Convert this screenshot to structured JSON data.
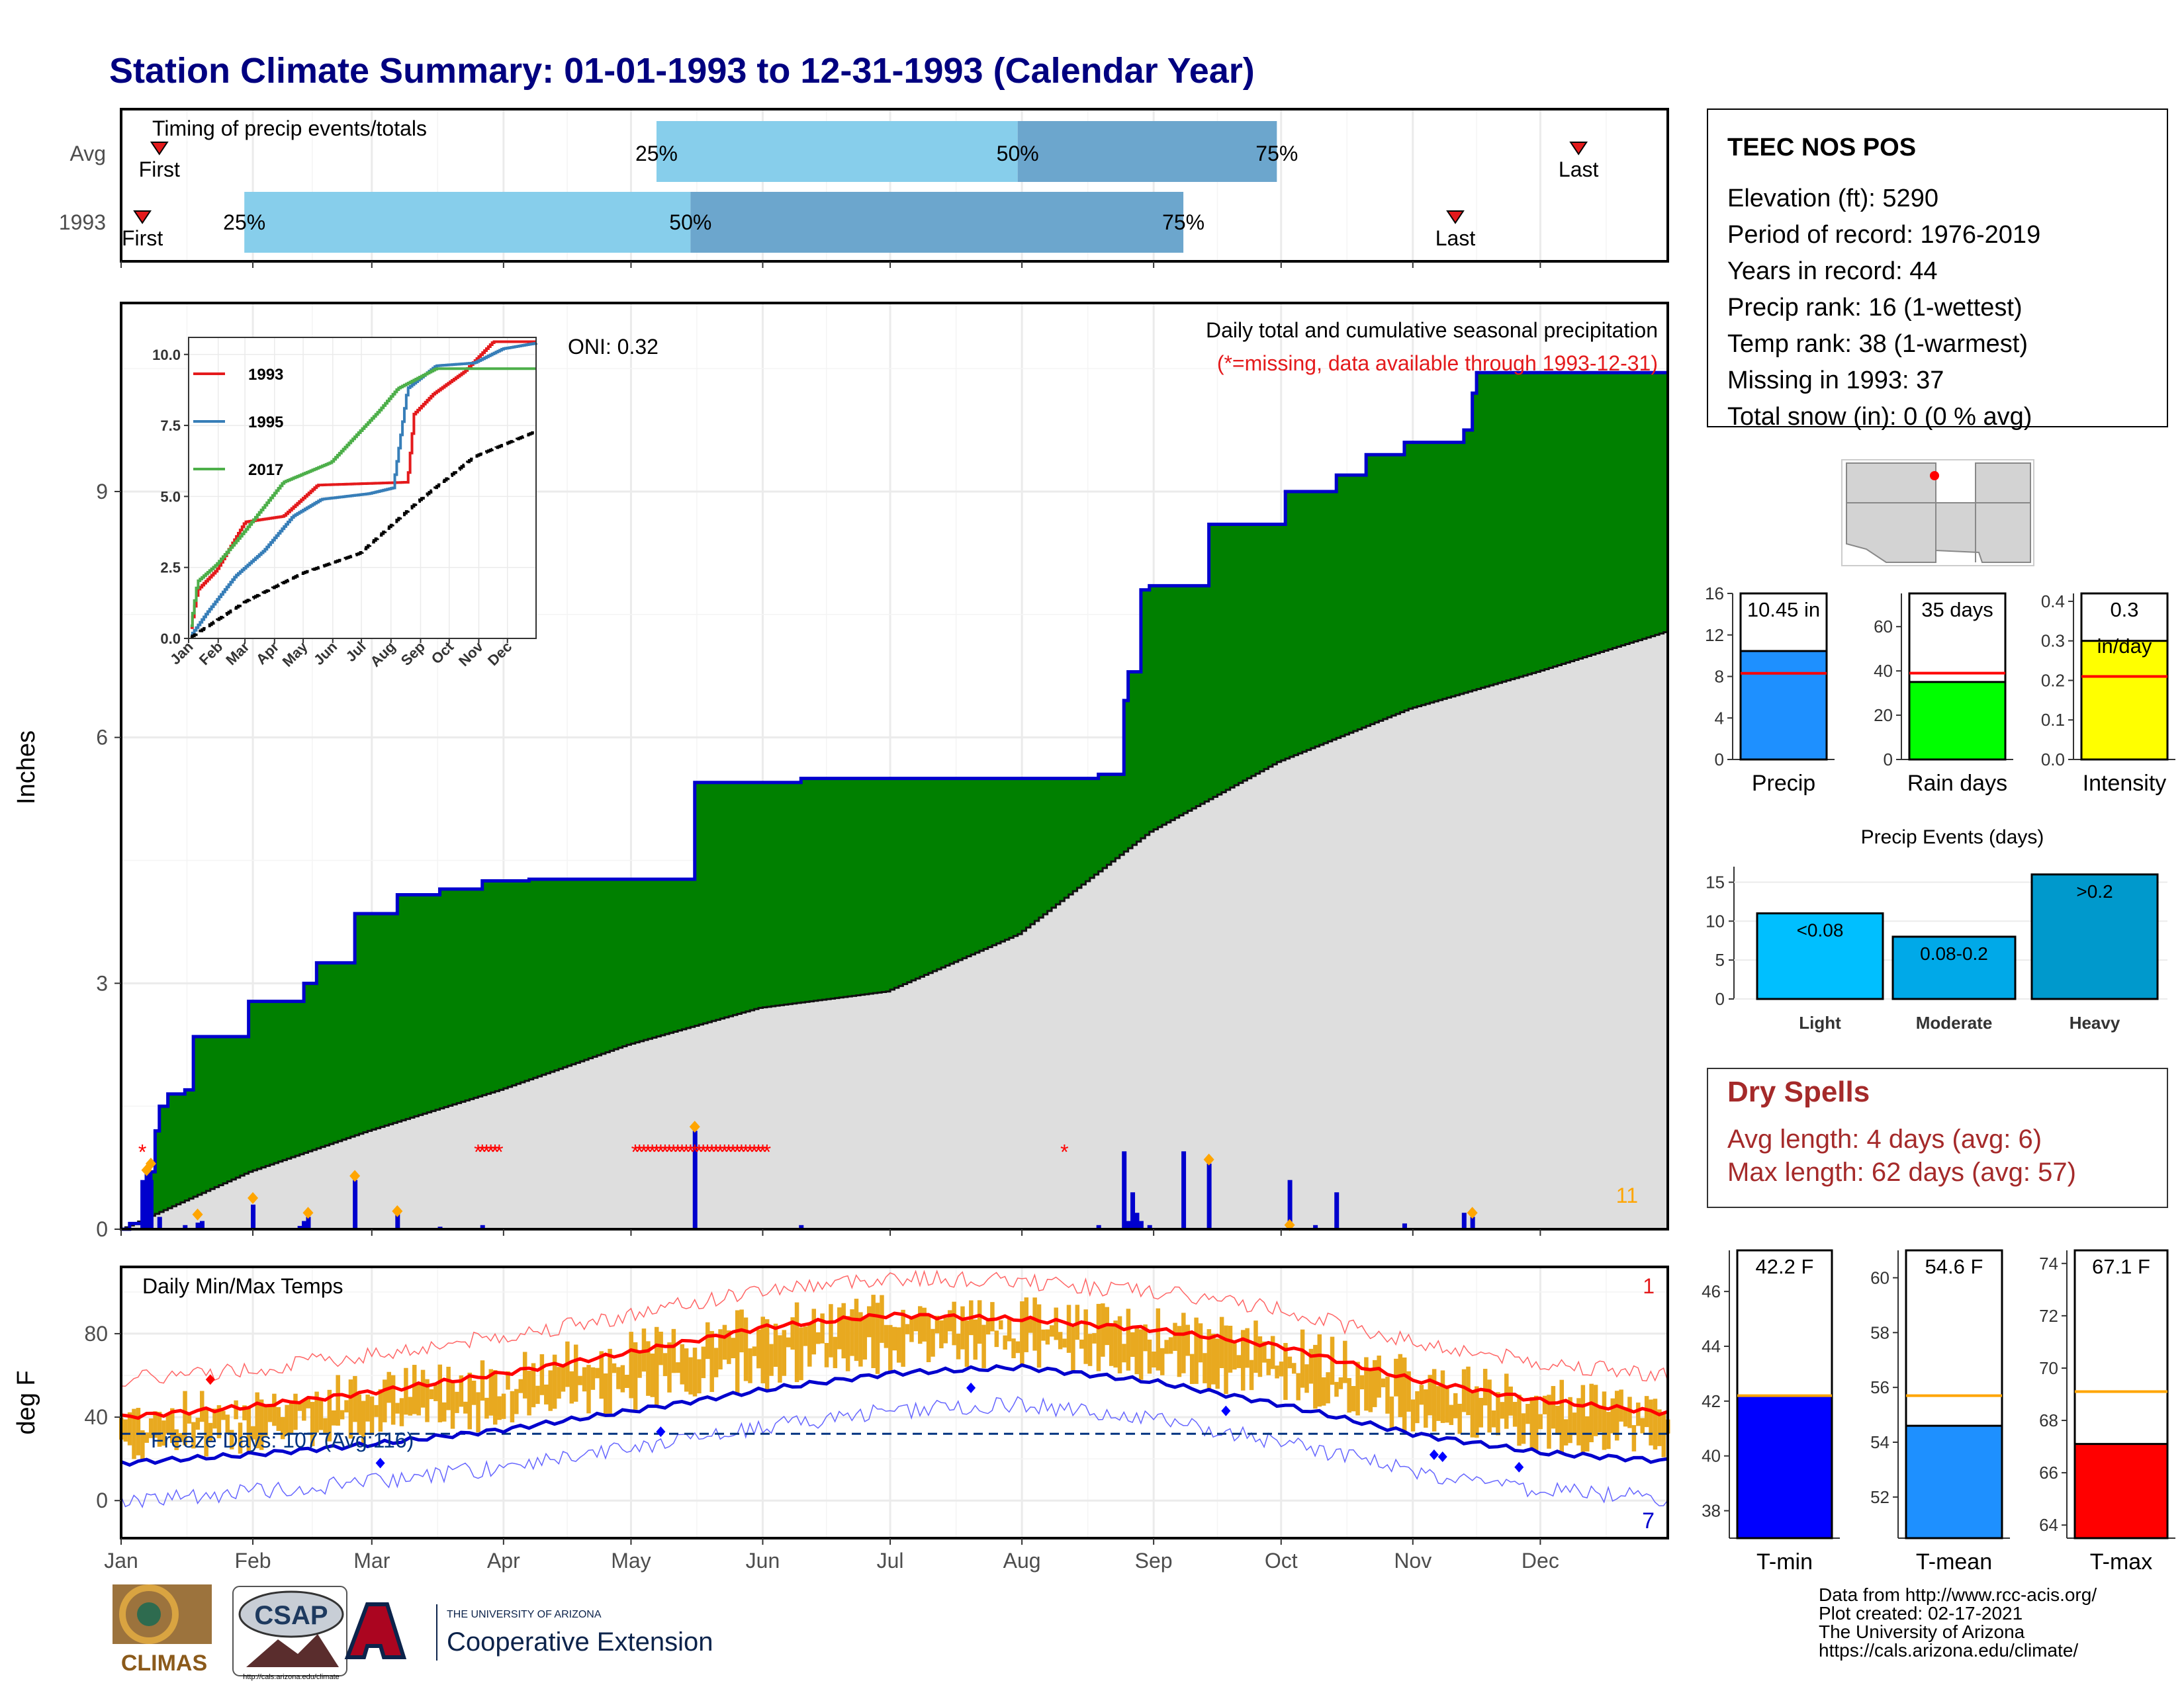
{
  "title": "Station Climate Summary: 01-01-1993 to 12-31-1993 (Calendar Year)",
  "colors": {
    "title": "#000080",
    "green": "#008000",
    "blue_line": "#0000CD",
    "gray_fill": "#DEDEDE",
    "light_blue": "#87CEEB",
    "mid_blue": "#6CA6CD",
    "dodger": "#1E90FF",
    "red": "#E41A1C",
    "orange": "#FFA500",
    "gold": "#E8A920",
    "lime": "#00FF00",
    "yellow": "#FFFF00",
    "deepsky": "#00BFFF",
    "dry_red": "#A52A2A"
  },
  "months": [
    "Jan",
    "Feb",
    "Mar",
    "Apr",
    "May",
    "Jun",
    "Jul",
    "Aug",
    "Sep",
    "Oct",
    "Nov",
    "Dec"
  ],
  "timing": {
    "title": "Timing of precip events/totals",
    "rows": [
      {
        "label": "Avg",
        "p25_doy": 127,
        "p50_doy": 212,
        "p75_doy": 273,
        "first_doy": 10,
        "last_doy": 344,
        "text_p25": "25%",
        "text_p50": "50%",
        "text_p75": "75%",
        "text_first": "First",
        "text_last": "Last"
      },
      {
        "label": "1993",
        "p25_doy": 30,
        "p50_doy": 135,
        "p75_doy": 251,
        "first_doy": 6,
        "last_doy": 315,
        "text_p25": "25%",
        "text_p50": "50%",
        "text_p75": "75%",
        "text_first": "First",
        "text_last": "Last"
      }
    ]
  },
  "precip_panel": {
    "ylabel": "Inches",
    "yticks": [
      0,
      3,
      6,
      9
    ],
    "oni": "ONI: 0.32",
    "note1": "Daily total and cumulative seasonal precipitation",
    "note2": "(*=missing, data available through 1993-12-31)",
    "corner_count": "11"
  },
  "inset": {
    "yticks": [
      "0.0",
      "2.5",
      "5.0",
      "7.5",
      "10.0"
    ],
    "months": [
      "Jan",
      "Feb",
      "Mar",
      "Apr",
      "May",
      "Jun",
      "Jul",
      "Aug",
      "Sep",
      "Oct",
      "Nov",
      "Dec"
    ],
    "legend": [
      {
        "name": "1993",
        "color": "#E41A1C"
      },
      {
        "name": "1995",
        "color": "#377EB8"
      },
      {
        "name": "2017",
        "color": "#4DAF4A"
      }
    ]
  },
  "temp_panel": {
    "ylabel": "deg F",
    "title": "Daily Min/Max Temps",
    "freeze": "Freeze Days: 107 (Avg:116)",
    "yticks": [
      0,
      40,
      80
    ],
    "corner_top": "1",
    "corner_bottom": "7"
  },
  "station": {
    "name": "TEEC NOS POS",
    "lines": [
      "Elevation (ft): 5290",
      "Period of record: 1976-2019",
      "Years in record: 44",
      "Precip rank: 16 (1-wettest)",
      "Temp rank: 38 (1-warmest)",
      "Missing in 1993: 37",
      "Total snow (in): 0 (0 % avg)"
    ]
  },
  "summary_bars": [
    {
      "label": "Precip",
      "value": 10.45,
      "text": "10.45 in",
      "avg": 8.3,
      "ymax": 16,
      "yticks": [
        "0",
        "4",
        "8",
        "12",
        "16"
      ],
      "color": "#1E90FF"
    },
    {
      "label": "Rain days",
      "value": 35,
      "text": "35 days",
      "avg": 39,
      "ymax": 75,
      "yticks": [
        "0",
        "20",
        "40",
        "60"
      ],
      "color": "#00FF00"
    },
    {
      "label": "Intensity",
      "value": 0.3,
      "text": "0.3",
      "text2": "in/day",
      "avg": 0.21,
      "ymax": 0.42,
      "yticks": [
        "0.0",
        "0.1",
        "0.2",
        "0.3",
        "0.4"
      ],
      "color": "#FFFF00"
    }
  ],
  "events": {
    "title": "Precip Events (days)",
    "yticks": [
      "0",
      "5",
      "10",
      "15"
    ],
    "bars": [
      {
        "label": "Light",
        "value": 11,
        "text": "<0.08",
        "color": "#00BFFF"
      },
      {
        "label": "Moderate",
        "value": 8,
        "text": "0.08-0.2",
        "color": "#00A9E8"
      },
      {
        "label": "Heavy",
        "value": 16,
        "text": ">0.2",
        "color": "#0099CC"
      }
    ]
  },
  "dry_spells": {
    "title": "Dry Spells",
    "line1": "Avg length: 4 days (avg: 6)",
    "line2": "Max length: 62 days (avg: 57)"
  },
  "temp_bars": [
    {
      "label": "T-min",
      "value": 42.2,
      "text": "42.2 F",
      "avg": 42.2,
      "ymin": 37,
      "ymax": 47.5,
      "yticks": [
        38,
        40,
        42,
        44,
        46
      ],
      "color": "#0000FF"
    },
    {
      "label": "T-mean",
      "value": 54.6,
      "text": "54.6 F",
      "avg": 55.7,
      "ymin": 50.5,
      "ymax": 61,
      "yticks": [
        52,
        54,
        56,
        58,
        60
      ],
      "color": "#1E90FF"
    },
    {
      "label": "T-max",
      "value": 67.1,
      "text": "67.1 F",
      "avg": 69.1,
      "ymin": 63.5,
      "ymax": 74.5,
      "yticks": [
        64,
        66,
        68,
        70,
        72,
        74
      ],
      "color": "#FF0000"
    }
  ],
  "footer": {
    "lines": [
      "Data from http://www.rcc-acis.org/",
      "Plot created: 02-17-2021",
      "The University of Arizona",
      "https://cals.arizona.edu/climate/"
    ],
    "climas": "CLIMAS",
    "csap": "CSAP",
    "csap_url": "http://cals.arizona.edu/climate",
    "ua_small": "THE UNIVERSITY OF ARIZONA",
    "ua_big": "Cooperative Extension"
  },
  "chart_data": {
    "type": "area",
    "title": "Daily total and cumulative seasonal precipitation",
    "ylabel": "Inches",
    "ylim": [
      0,
      11.3
    ],
    "x_unit": "day of year 1993",
    "cumulative_1993": [
      [
        1,
        0
      ],
      [
        3,
        0.07
      ],
      [
        6,
        0.25
      ],
      [
        7,
        0.6
      ],
      [
        8,
        0.7
      ],
      [
        9,
        1.2
      ],
      [
        10,
        1.5
      ],
      [
        12,
        1.65
      ],
      [
        16,
        1.7
      ],
      [
        18,
        2.35
      ],
      [
        30,
        2.35
      ],
      [
        31,
        2.78
      ],
      [
        43,
        2.78
      ],
      [
        44,
        3.0
      ],
      [
        47,
        3.25
      ],
      [
        55,
        3.25
      ],
      [
        56,
        3.85
      ],
      [
        65,
        3.85
      ],
      [
        66,
        4.08
      ],
      [
        75,
        4.08
      ],
      [
        76,
        4.15
      ],
      [
        85,
        4.15
      ],
      [
        86,
        4.25
      ],
      [
        96,
        4.25
      ],
      [
        97,
        4.27
      ],
      [
        135,
        4.27
      ],
      [
        136,
        5.45
      ],
      [
        160,
        5.45
      ],
      [
        161,
        5.5
      ],
      [
        230,
        5.5
      ],
      [
        231,
        5.55
      ],
      [
        236,
        5.55
      ],
      [
        237,
        6.45
      ],
      [
        238,
        6.8
      ],
      [
        240,
        6.8
      ],
      [
        241,
        7.8
      ],
      [
        243,
        7.85
      ],
      [
        256,
        7.85
      ],
      [
        257,
        8.6
      ],
      [
        274,
        8.6
      ],
      [
        275,
        9.0
      ],
      [
        286,
        9.0
      ],
      [
        287,
        9.2
      ],
      [
        293,
        9.2
      ],
      [
        294,
        9.45
      ],
      [
        302,
        9.45
      ],
      [
        303,
        9.6
      ],
      [
        316,
        9.6
      ],
      [
        317,
        9.75
      ],
      [
        319,
        10.2
      ],
      [
        320,
        10.45
      ],
      [
        365,
        10.45
      ]
    ],
    "average_cumulative": [
      [
        1,
        0
      ],
      [
        31,
        0.7
      ],
      [
        59,
        1.2
      ],
      [
        90,
        1.7
      ],
      [
        120,
        2.25
      ],
      [
        151,
        2.7
      ],
      [
        181,
        2.9
      ],
      [
        212,
        3.6
      ],
      [
        243,
        4.85
      ],
      [
        273,
        5.7
      ],
      [
        304,
        6.35
      ],
      [
        334,
        6.8
      ],
      [
        365,
        7.3
      ]
    ],
    "daily_totals": [
      [
        6,
        0.6
      ],
      [
        7,
        0.7
      ],
      [
        8,
        0.6
      ],
      [
        10,
        0.15
      ],
      [
        16,
        0.05
      ],
      [
        19,
        0.08
      ],
      [
        20,
        0.1
      ],
      [
        32,
        0.3
      ],
      [
        43,
        0.04
      ],
      [
        44,
        0.1
      ],
      [
        45,
        0.15
      ],
      [
        56,
        0.6
      ],
      [
        66,
        0.2
      ],
      [
        76,
        0.03
      ],
      [
        86,
        0.05
      ],
      [
        136,
        1.2
      ],
      [
        161,
        0.05
      ],
      [
        231,
        0.05
      ],
      [
        237,
        0.95
      ],
      [
        238,
        0.1
      ],
      [
        239,
        0.45
      ],
      [
        240,
        0.2
      ],
      [
        241,
        0.1
      ],
      [
        243,
        0.05
      ],
      [
        251,
        0.95
      ],
      [
        257,
        0.8
      ],
      [
        276,
        0.6
      ],
      [
        282,
        0.05
      ],
      [
        287,
        0.45
      ],
      [
        303,
        0.07
      ],
      [
        317,
        0.2
      ],
      [
        319,
        0.15
      ]
    ],
    "missing_doy": [
      6,
      85,
      86,
      87,
      88,
      89,
      90,
      122,
      123,
      124,
      125,
      126,
      127,
      128,
      129,
      130,
      131,
      132,
      133,
      134,
      135,
      136,
      137,
      138,
      139,
      140,
      141,
      142,
      143,
      144,
      145,
      146,
      147,
      148,
      149,
      150,
      151,
      152,
      153,
      223
    ],
    "inset_series": [
      {
        "name": "1993",
        "points": [
          [
            1,
            0
          ],
          [
            10,
            1.7
          ],
          [
            30,
            2.4
          ],
          [
            60,
            4.1
          ],
          [
            100,
            4.3
          ],
          [
            136,
            5.4
          ],
          [
            230,
            5.5
          ],
          [
            237,
            7.9
          ],
          [
            257,
            8.6
          ],
          [
            290,
            9.4
          ],
          [
            320,
            10.45
          ],
          [
            365,
            10.45
          ]
        ]
      },
      {
        "name": "1995",
        "points": [
          [
            1,
            0
          ],
          [
            20,
            0.9
          ],
          [
            50,
            2.2
          ],
          [
            80,
            3.1
          ],
          [
            110,
            4.3
          ],
          [
            140,
            4.9
          ],
          [
            190,
            5.1
          ],
          [
            215,
            5.3
          ],
          [
            230,
            8.8
          ],
          [
            260,
            9.6
          ],
          [
            300,
            9.7
          ],
          [
            330,
            10.2
          ],
          [
            365,
            10.4
          ]
        ]
      },
      {
        "name": "2017",
        "points": [
          [
            1,
            0
          ],
          [
            10,
            2.0
          ],
          [
            30,
            2.6
          ],
          [
            60,
            3.8
          ],
          [
            100,
            5.5
          ],
          [
            150,
            6.2
          ],
          [
            200,
            8.0
          ],
          [
            220,
            8.8
          ],
          [
            260,
            9.5
          ],
          [
            300,
            9.5
          ],
          [
            365,
            9.5
          ]
        ]
      },
      {
        "name": "",
        "points": [
          [
            1,
            0
          ],
          [
            60,
            1.3
          ],
          [
            120,
            2.3
          ],
          [
            180,
            3.0
          ],
          [
            240,
            4.8
          ],
          [
            300,
            6.4
          ],
          [
            365,
            7.3
          ]
        ]
      }
    ],
    "temperature": {
      "type": "line",
      "ylim": [
        -18,
        112
      ],
      "avg_max": [
        [
          1,
          40
        ],
        [
          31,
          45
        ],
        [
          60,
          52
        ],
        [
          91,
          61
        ],
        [
          121,
          71
        ],
        [
          152,
          83
        ],
        [
          182,
          89
        ],
        [
          213,
          87
        ],
        [
          244,
          82
        ],
        [
          274,
          74
        ],
        [
          305,
          58
        ],
        [
          335,
          48
        ],
        [
          365,
          42
        ]
      ],
      "avg_min": [
        [
          1,
          18
        ],
        [
          31,
          22
        ],
        [
          60,
          27
        ],
        [
          91,
          34
        ],
        [
          121,
          43
        ],
        [
          152,
          53
        ],
        [
          182,
          61
        ],
        [
          213,
          64
        ],
        [
          244,
          57
        ],
        [
          274,
          46
        ],
        [
          305,
          32
        ],
        [
          335,
          23
        ],
        [
          365,
          19
        ]
      ],
      "freeze_line": 32
    }
  }
}
